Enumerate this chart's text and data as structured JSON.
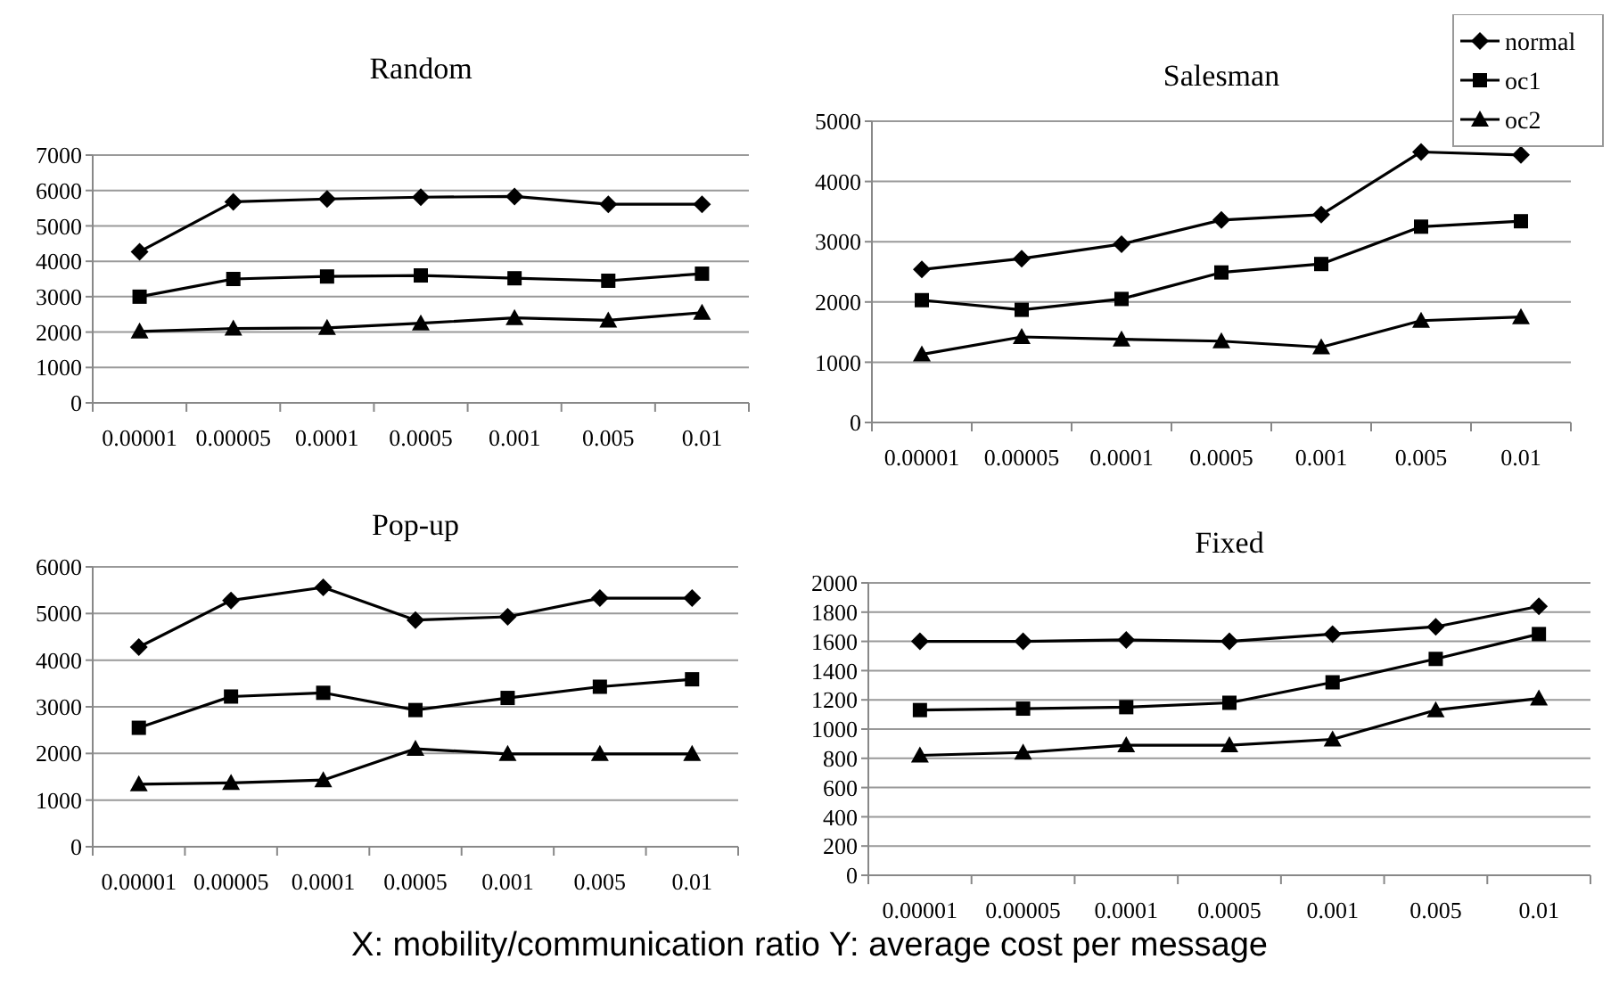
{
  "chart_data": [
    {
      "type": "line",
      "title": "Random",
      "categories": [
        "0.00001",
        "0.00005",
        "0.0001",
        "0.0005",
        "0.001",
        "0.005",
        "0.01"
      ],
      "ylim": [
        0,
        7000
      ],
      "yticks": [
        0,
        1000,
        2000,
        3000,
        4000,
        5000,
        6000,
        7000
      ],
      "grid": "y",
      "legend": false,
      "series": [
        {
          "color": "#000000",
          "marker": "diamond",
          "values": [
            4270,
            5680,
            5760,
            5810,
            5830,
            5610,
            5610
          ]
        },
        {
          "color": "#000000",
          "marker": "square",
          "values": [
            3000,
            3500,
            3570,
            3600,
            3520,
            3450,
            3650
          ]
        },
        {
          "color": "#000000",
          "marker": "triangle",
          "values": [
            2020,
            2100,
            2120,
            2250,
            2400,
            2330,
            2550
          ]
        }
      ]
    },
    {
      "type": "line",
      "title": "Salesman",
      "categories": [
        "0.00001",
        "0.00005",
        "0.0001",
        "0.0005",
        "0.001",
        "0.005",
        "0.01"
      ],
      "ylim": [
        0,
        5000
      ],
      "yticks": [
        0,
        1000,
        2000,
        3000,
        4000,
        5000
      ],
      "grid": "y",
      "legend": "top right",
      "series": [
        {
          "name": "normal",
          "color": "#000000",
          "marker": "diamond",
          "values": [
            2540,
            2720,
            2960,
            3360,
            3450,
            4490,
            4440
          ]
        },
        {
          "name": "oc1",
          "color": "#000000",
          "marker": "square",
          "values": [
            2030,
            1870,
            2050,
            2490,
            2630,
            3250,
            3340
          ]
        },
        {
          "name": "oc2",
          "color": "#000000",
          "marker": "triangle",
          "values": [
            1130,
            1420,
            1380,
            1350,
            1250,
            1690,
            1750
          ]
        }
      ]
    },
    {
      "type": "line",
      "title": "Pop-up",
      "categories": [
        "0.00001",
        "0.00005",
        "0.0001",
        "0.0005",
        "0.001",
        "0.005",
        "0.01"
      ],
      "ylim": [
        0,
        6000
      ],
      "yticks": [
        0,
        1000,
        2000,
        3000,
        4000,
        5000,
        6000
      ],
      "grid": "y",
      "legend": false,
      "series": [
        {
          "color": "#000000",
          "marker": "diamond",
          "values": [
            4280,
            5280,
            5560,
            4860,
            4930,
            5330,
            5330
          ]
        },
        {
          "color": "#000000",
          "marker": "square",
          "values": [
            2550,
            3220,
            3300,
            2930,
            3190,
            3430,
            3590
          ]
        },
        {
          "color": "#000000",
          "marker": "triangle",
          "values": [
            1340,
            1370,
            1430,
            2100,
            1990,
            1990,
            1990
          ]
        }
      ]
    },
    {
      "type": "line",
      "title": "Fixed",
      "categories": [
        "0.00001",
        "0.00005",
        "0.0001",
        "0.0005",
        "0.001",
        "0.005",
        "0.01"
      ],
      "ylim": [
        0,
        2000
      ],
      "yticks": [
        0,
        200,
        400,
        600,
        800,
        1000,
        1200,
        1400,
        1600,
        1800,
        2000
      ],
      "grid": "y",
      "legend": false,
      "annotations": [
        "X: mobility/communication ratio  Y: average cost per message"
      ],
      "series": [
        {
          "color": "#000000",
          "marker": "diamond",
          "values": [
            1600,
            1600,
            1610,
            1600,
            1650,
            1700,
            1840
          ]
        },
        {
          "color": "#000000",
          "marker": "square",
          "values": [
            1130,
            1140,
            1150,
            1180,
            1320,
            1480,
            1650
          ]
        },
        {
          "color": "#000000",
          "marker": "triangle",
          "values": [
            820,
            840,
            890,
            890,
            930,
            1130,
            1210
          ]
        }
      ]
    }
  ]
}
